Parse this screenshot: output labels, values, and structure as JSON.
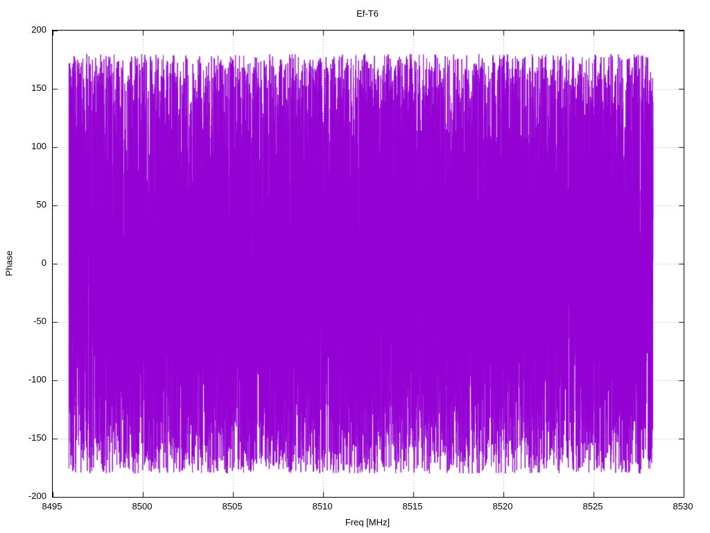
{
  "chart_data": {
    "type": "line",
    "title": "Ef-T6",
    "xlabel": "Freq [MHz]",
    "ylabel": "Phase",
    "xlim": [
      8495,
      8530
    ],
    "ylim": [
      -200,
      200
    ],
    "xticks": [
      8495,
      8500,
      8505,
      8510,
      8515,
      8520,
      8525,
      8530
    ],
    "yticks": [
      -200,
      -150,
      -100,
      -50,
      0,
      50,
      100,
      150,
      200
    ],
    "grid": true,
    "grid_style": "dotted",
    "grid_color": "#9a9a9a",
    "background": "#ffffff",
    "border_color": "#000000",
    "legend": false,
    "series": [
      {
        "name": "phase",
        "color": "#9400d3",
        "description": "Wrapped interferometric phase noise, uniformly distributed between -180 and 180 degrees across the band",
        "x_start": 8495.9,
        "x_end": 8528.3,
        "n_points": 12000,
        "y_min": -180,
        "y_max": 180,
        "seed": 7
      }
    ]
  }
}
